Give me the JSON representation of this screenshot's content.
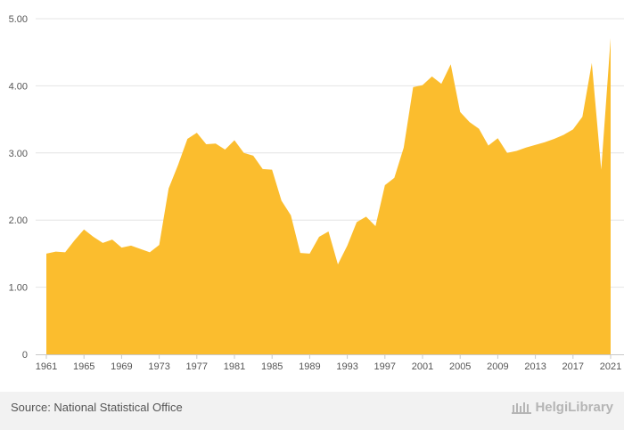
{
  "chart_data": {
    "type": "area",
    "color": "#fbbd2e",
    "y_ticks": [
      "0",
      "1.00",
      "2.00",
      "3.00",
      "4.00",
      "5.00"
    ],
    "ylim": [
      0,
      5
    ],
    "xlim": [
      1961,
      2021
    ],
    "x_tick_labels": [
      "1961",
      "1965",
      "1969",
      "1973",
      "1977",
      "1981",
      "1985",
      "1989",
      "1993",
      "1997",
      "2001",
      "2005",
      "2009",
      "2013",
      "2017",
      "2021"
    ],
    "grid": true,
    "x": [
      1961,
      1962,
      1963,
      1964,
      1965,
      1966,
      1967,
      1968,
      1969,
      1970,
      1971,
      1972,
      1973,
      1974,
      1975,
      1976,
      1977,
      1978,
      1979,
      1980,
      1981,
      1982,
      1983,
      1984,
      1985,
      1986,
      1987,
      1988,
      1989,
      1990,
      1991,
      1992,
      1993,
      1994,
      1995,
      1996,
      1997,
      1998,
      1999,
      2000,
      2001,
      2002,
      2003,
      2004,
      2005,
      2006,
      2007,
      2008,
      2009,
      2010,
      2011,
      2012,
      2013,
      2014,
      2015,
      2016,
      2017,
      2018,
      2019,
      2020,
      2021
    ],
    "values": [
      1.5,
      1.53,
      1.52,
      1.7,
      1.86,
      1.75,
      1.66,
      1.71,
      1.59,
      1.62,
      1.57,
      1.52,
      1.63,
      2.47,
      2.82,
      3.21,
      3.3,
      3.13,
      3.14,
      3.05,
      3.19,
      3.0,
      2.96,
      2.76,
      2.75,
      2.29,
      2.07,
      1.51,
      1.5,
      1.75,
      1.83,
      1.34,
      1.62,
      1.97,
      2.05,
      1.91,
      2.52,
      2.63,
      3.08,
      3.98,
      4.01,
      4.14,
      4.03,
      4.32,
      3.61,
      3.46,
      3.36,
      3.11,
      3.22,
      3.0,
      3.03,
      3.08,
      3.12,
      3.16,
      3.21,
      3.27,
      3.35,
      3.54,
      4.34,
      2.75,
      4.71
    ]
  },
  "footer": {
    "source": "Source: National Statistical Office",
    "brand": "HelgiLibrary"
  }
}
